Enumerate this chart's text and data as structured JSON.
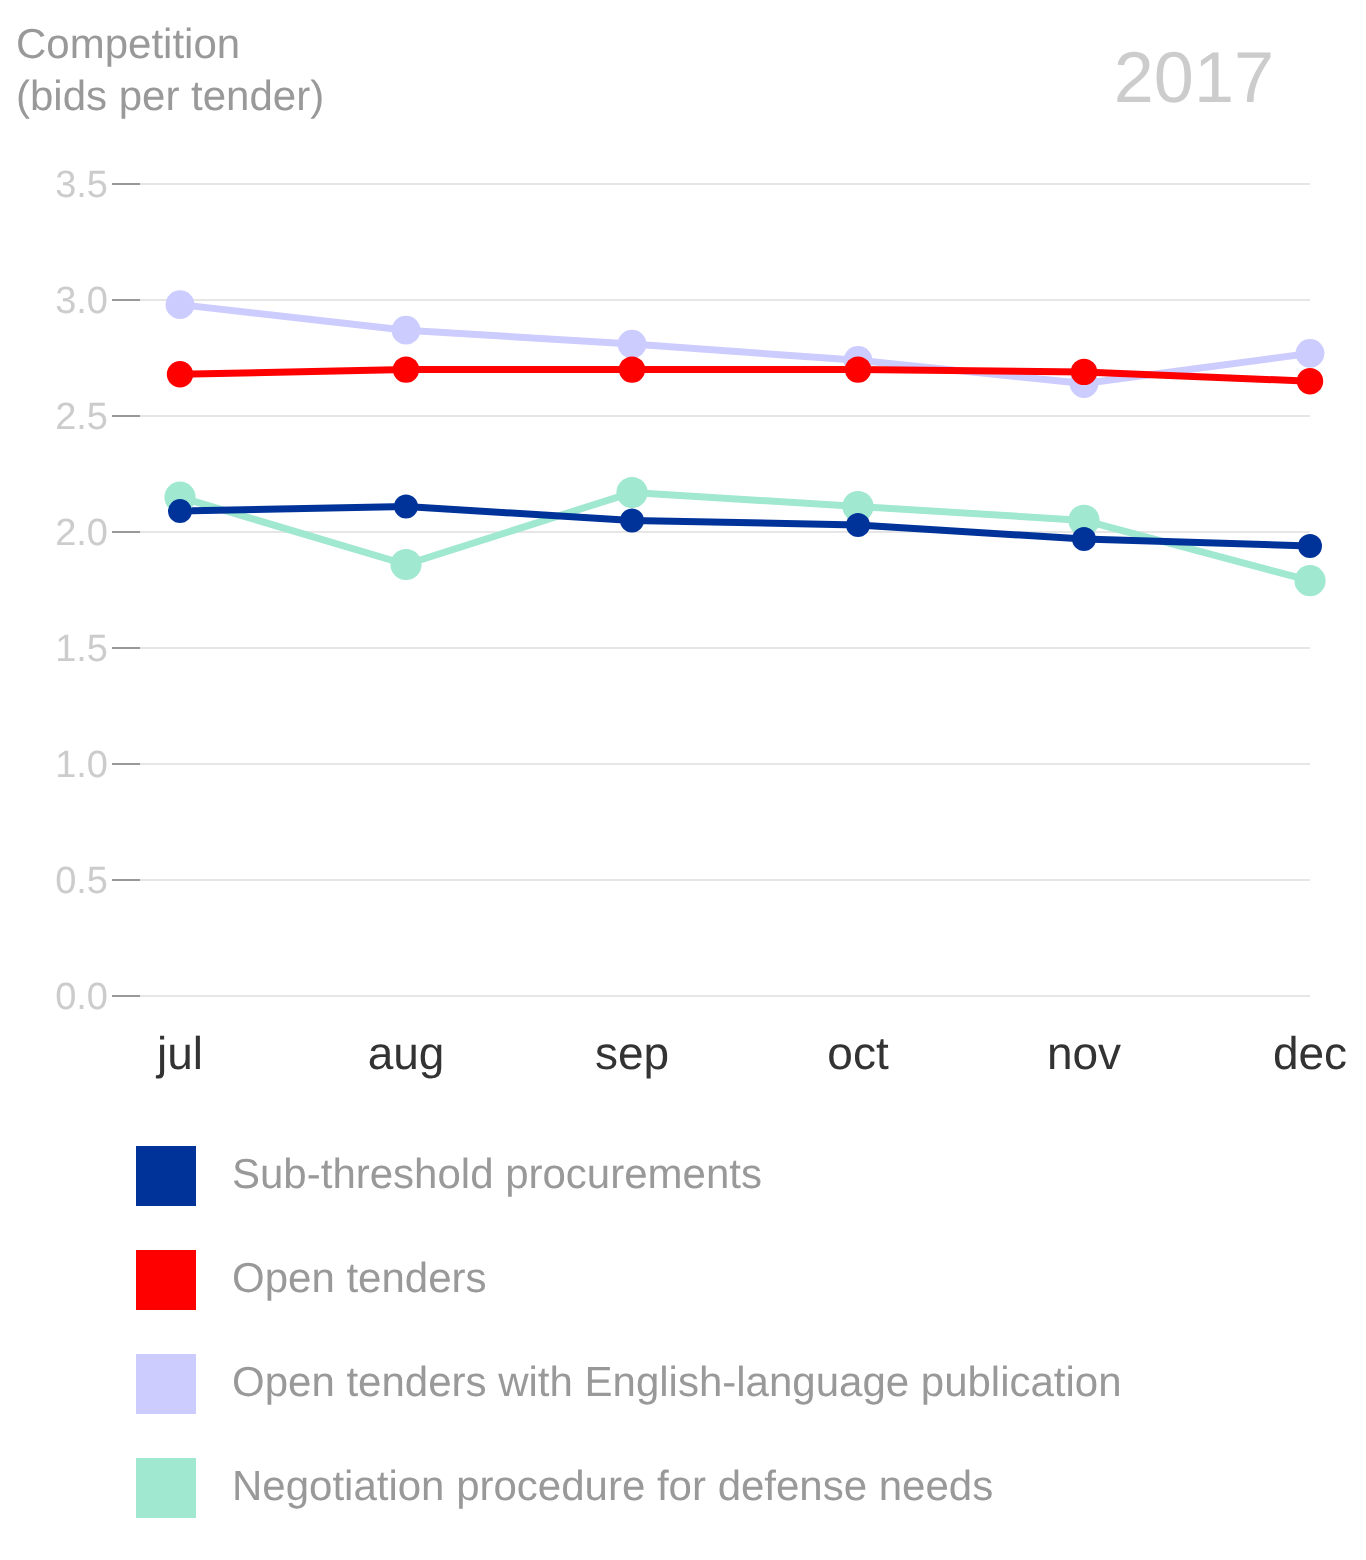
{
  "chart_data": {
    "type": "line",
    "title": "2017",
    "ylabel": "Competition\n(bids per tender)",
    "categories": [
      "jul",
      "aug",
      "sep",
      "oct",
      "nov",
      "dec"
    ],
    "series": [
      {
        "name": "Sub-threshold procurements",
        "color": "#00339a",
        "values": [
          2.09,
          2.11,
          2.05,
          2.03,
          1.97,
          1.94
        ]
      },
      {
        "name": "Open tenders",
        "color": "#ff0000",
        "values": [
          2.68,
          2.7,
          2.7,
          2.7,
          2.69,
          2.65
        ]
      },
      {
        "name": "Open tenders with English-language publication",
        "color": "#ccccff",
        "values": [
          2.98,
          2.87,
          2.81,
          2.74,
          2.64,
          2.77
        ]
      },
      {
        "name": "Negotiation procedure for defense needs",
        "color": "#a0e8cf",
        "values": [
          2.15,
          1.86,
          2.17,
          2.11,
          2.05,
          1.79
        ]
      }
    ],
    "ylim": [
      0,
      3.5
    ],
    "yticks": [
      {
        "value": 0,
        "label": "0.0"
      },
      {
        "value": 0.5,
        "label": "0.5"
      },
      {
        "value": 1,
        "label": "1.0"
      },
      {
        "value": 1.5,
        "label": "1.5"
      },
      {
        "value": 2,
        "label": "2.0"
      },
      {
        "value": 2.5,
        "label": "2.5"
      },
      {
        "value": 3,
        "label": "3.0"
      },
      {
        "value": 3.5,
        "label": "3.5"
      }
    ],
    "grid": "y",
    "legend": "bottom",
    "marker": "circle",
    "line_style": "solid"
  }
}
